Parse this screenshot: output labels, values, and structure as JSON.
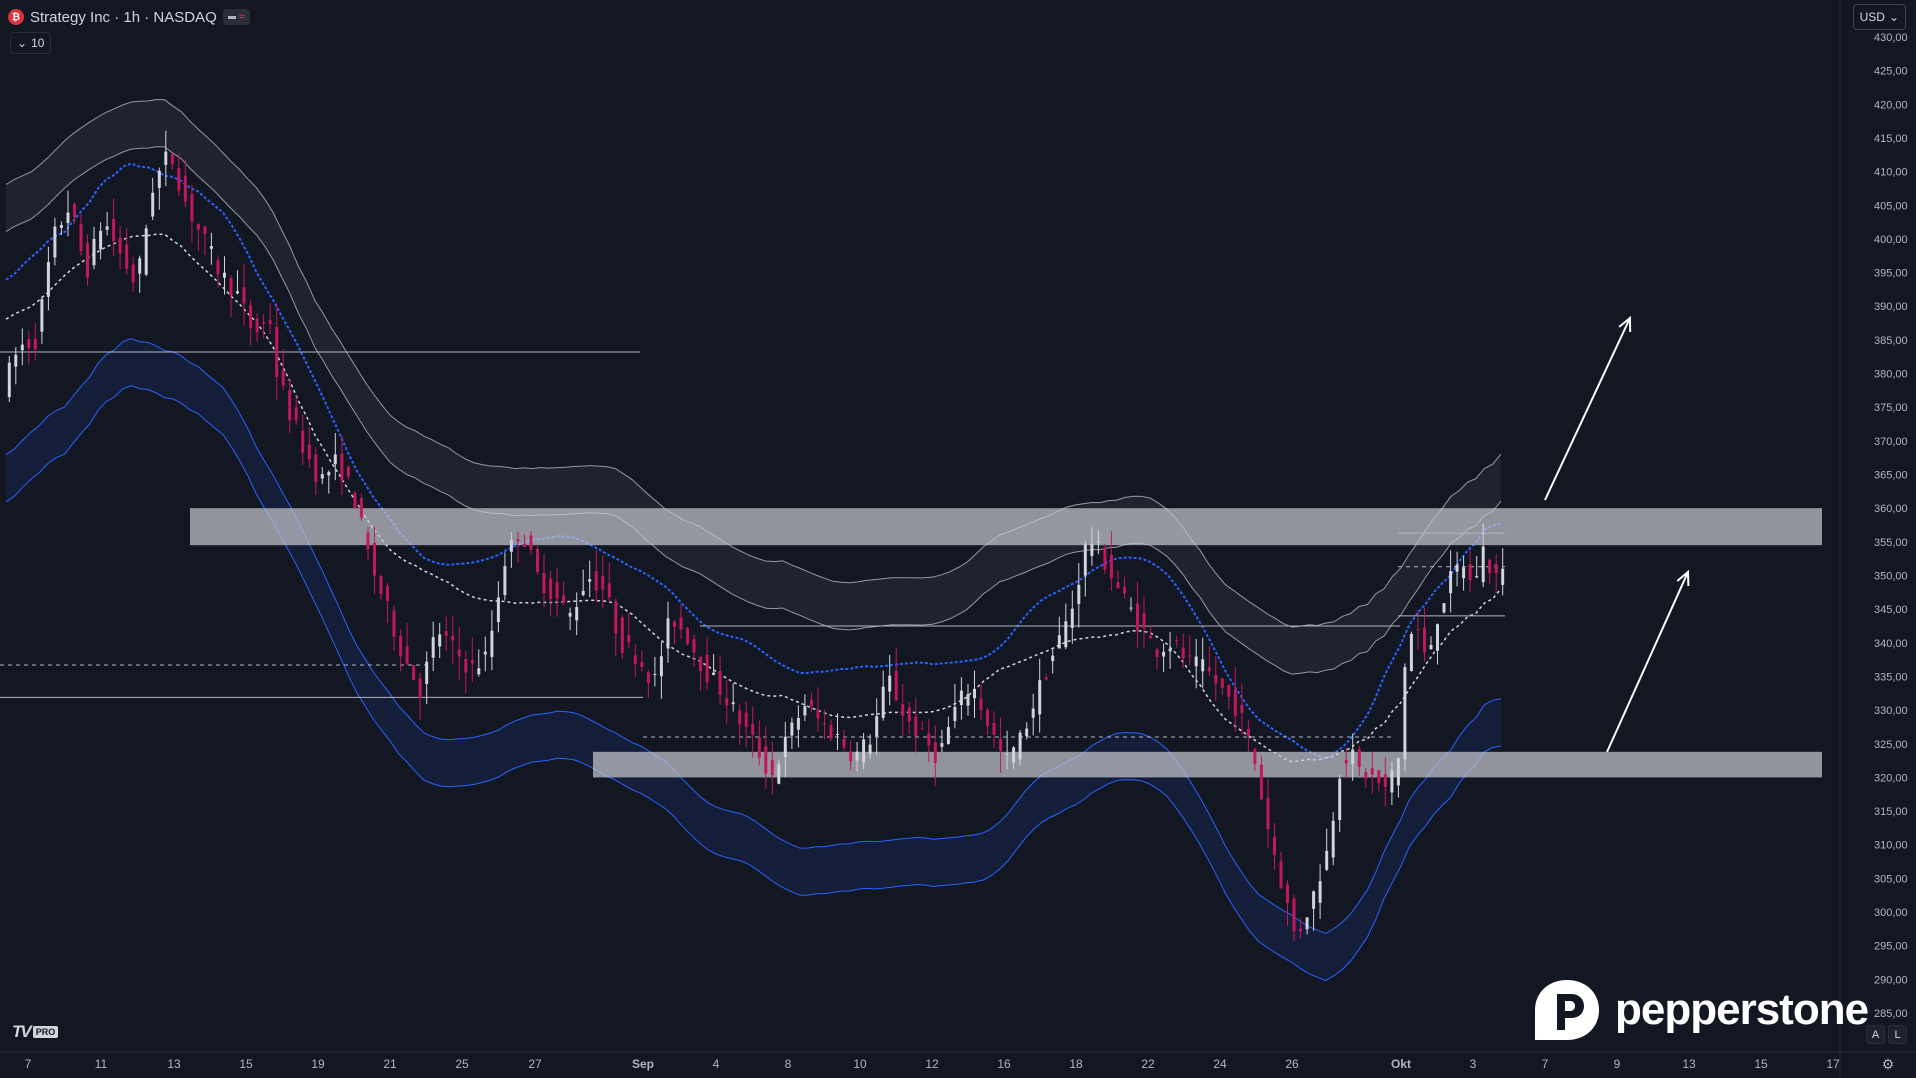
{
  "header": {
    "title": "Strategy Inc · 1h · NASDAQ",
    "symbol_icon": "strategy-logo-icon",
    "indicator_count": "10"
  },
  "currency": {
    "label": "USD"
  },
  "watermark": {
    "tv_text": "TV",
    "tv_pro": "PRO",
    "broker": "pepperstone"
  },
  "scale_buttons": {
    "auto": "A",
    "log": "L"
  },
  "colors": {
    "background": "#131722",
    "up": "#d1d4dc",
    "down": "#c2185b",
    "zone": "#b2b5be",
    "blue_band": "#2962ff",
    "axis_text": "#b2b5be"
  },
  "chart_data": {
    "type": "candlestick",
    "symbol": "Strategy Inc",
    "interval": "1h",
    "exchange": "NASDAQ",
    "x_tick_labels": [
      "7",
      "11",
      "13",
      "15",
      "19",
      "21",
      "25",
      "27",
      "Sep",
      "4",
      "8",
      "10",
      "12",
      "16",
      "18",
      "22",
      "24",
      "26",
      "Okt",
      "3",
      "7",
      "9",
      "13",
      "15",
      "17"
    ],
    "y_tick_labels": [
      "430,00",
      "425,00",
      "420,00",
      "415,00",
      "410,00",
      "405,00",
      "400,00",
      "395,00",
      "390,00",
      "385,00",
      "380,00",
      "375,00",
      "370,00",
      "365,00",
      "360,00",
      "355,00",
      "350,00",
      "345,00",
      "340,00",
      "335,00",
      "330,00",
      "325,00",
      "320,00",
      "315,00",
      "310,00",
      "305,00",
      "300,00",
      "295,00",
      "290,00",
      "285,00"
    ],
    "ylim": [
      283,
      431
    ],
    "price_path": [
      [
        0,
        378
      ],
      [
        0.5,
        384
      ],
      [
        1,
        385
      ],
      [
        1.5,
        400
      ],
      [
        2,
        405
      ],
      [
        2.5,
        395
      ],
      [
        3,
        403
      ],
      [
        3.5,
        398
      ],
      [
        4,
        393
      ],
      [
        4.5,
        408
      ],
      [
        5,
        413
      ],
      [
        5.5,
        405
      ],
      [
        6,
        400
      ],
      [
        6.5,
        395
      ],
      [
        7,
        392
      ],
      [
        7.5,
        386
      ],
      [
        8,
        388
      ],
      [
        8.2,
        380
      ],
      [
        8.6,
        374
      ],
      [
        9,
        369
      ],
      [
        9.5,
        364
      ],
      [
        10,
        367
      ],
      [
        10.5,
        362
      ],
      [
        11,
        352
      ],
      [
        11.5,
        345
      ],
      [
        12,
        338
      ],
      [
        12.5,
        333
      ],
      [
        13,
        342
      ],
      [
        13.5,
        339
      ],
      [
        14,
        336
      ],
      [
        14.5,
        338
      ],
      [
        15,
        352
      ],
      [
        15.5,
        357
      ],
      [
        16,
        350
      ],
      [
        16.5,
        347
      ],
      [
        17,
        344
      ],
      [
        17.5,
        350
      ],
      [
        18,
        348
      ],
      [
        18.5,
        340
      ],
      [
        19,
        338
      ],
      [
        19.5,
        334
      ],
      [
        20,
        344
      ],
      [
        20.5,
        341
      ],
      [
        21,
        336
      ],
      [
        21.5,
        333
      ],
      [
        22,
        329
      ],
      [
        22.5,
        325
      ],
      [
        23,
        320
      ],
      [
        23.5,
        326
      ],
      [
        24,
        331
      ],
      [
        24.5,
        328
      ],
      [
        25,
        326
      ],
      [
        25.5,
        323
      ],
      [
        26,
        326
      ],
      [
        26.5,
        335
      ],
      [
        27,
        329
      ],
      [
        27.5,
        326
      ],
      [
        28,
        323
      ],
      [
        28.5,
        330
      ],
      [
        29,
        334
      ],
      [
        29.5,
        328
      ],
      [
        30,
        322
      ],
      [
        30.5,
        326
      ],
      [
        31,
        333
      ],
      [
        31.5,
        339
      ],
      [
        32,
        345
      ],
      [
        32.5,
        356
      ],
      [
        33,
        352
      ],
      [
        33.5,
        347
      ],
      [
        34,
        343
      ],
      [
        34.5,
        339
      ],
      [
        35,
        340
      ],
      [
        35.5,
        337
      ],
      [
        36,
        336
      ],
      [
        36.5,
        333
      ],
      [
        37,
        330
      ],
      [
        37.5,
        322
      ],
      [
        37.8,
        314
      ],
      [
        38.2,
        306
      ],
      [
        38.7,
        296
      ],
      [
        39.2,
        302
      ],
      [
        39.7,
        310
      ],
      [
        40,
        321
      ],
      [
        40.3,
        324
      ],
      [
        40.6,
        321
      ],
      [
        41,
        320
      ],
      [
        41.4,
        318
      ],
      [
        41.8,
        323
      ],
      [
        42,
        339
      ],
      [
        42.3,
        343
      ],
      [
        42.6,
        337
      ],
      [
        43,
        345
      ],
      [
        43.4,
        350
      ],
      [
        43.7,
        352
      ],
      [
        44,
        348
      ],
      [
        44.3,
        354
      ],
      [
        44.6,
        350
      ],
      [
        44.9,
        350
      ]
    ],
    "candle_count": 230,
    "annotations": [
      "support-resistance zone 355-360",
      "support-resistance zone 320-324",
      "two upward arrows"
    ]
  }
}
